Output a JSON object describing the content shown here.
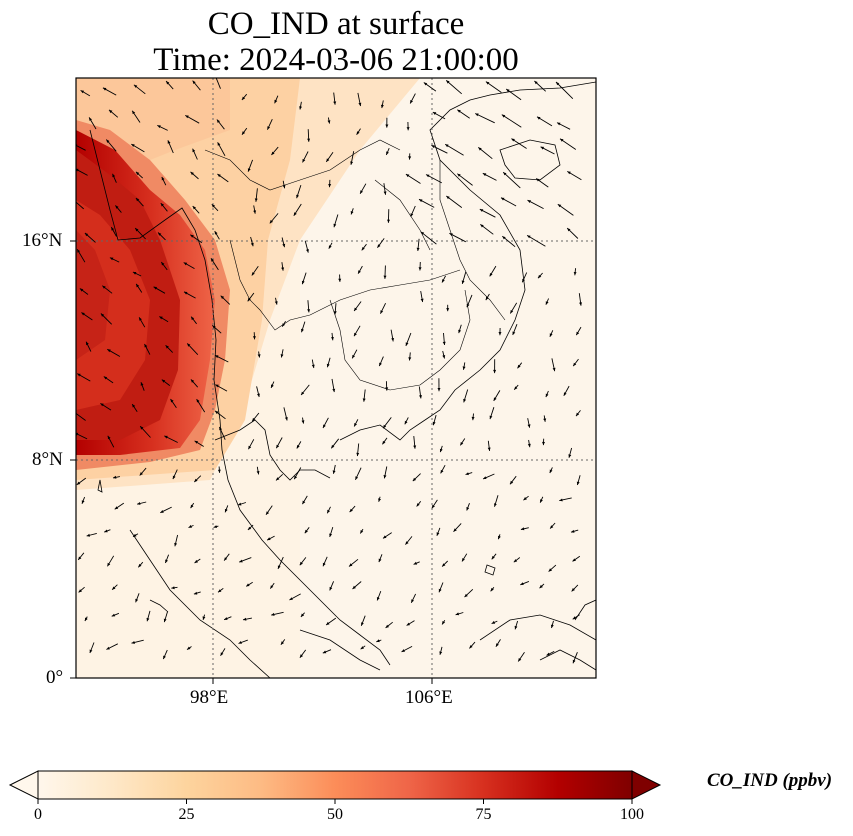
{
  "title": {
    "line1": "CO_IND at surface",
    "line2": "Time: 2024-03-06 21:00:00"
  },
  "map": {
    "lon_range": [
      93,
      112
    ],
    "lat_range": [
      0,
      22
    ],
    "lat_ticks": [
      "16°N",
      "8°N",
      "0°"
    ],
    "lon_ticks": [
      "98°E",
      "106°E"
    ],
    "gridlines": "dotted",
    "features": [
      "coastlines",
      "country borders",
      "wind vectors"
    ],
    "field": "CO_IND",
    "plume": "high concentrations over the Andaman Sea and western Myanmar coast, low elsewhere"
  },
  "colorbar": {
    "label": "CO_IND (ppbv)",
    "ticks": [
      "0",
      "25",
      "50",
      "75",
      "100"
    ],
    "range": [
      0,
      100
    ],
    "colormap": "OrRd",
    "colors": [
      "#fff7ec",
      "#fee8c8",
      "#fdd49e",
      "#fdbb84",
      "#fc8d59",
      "#ef6548",
      "#d7301f",
      "#b30000",
      "#7f0000"
    ],
    "extend": "both"
  }
}
